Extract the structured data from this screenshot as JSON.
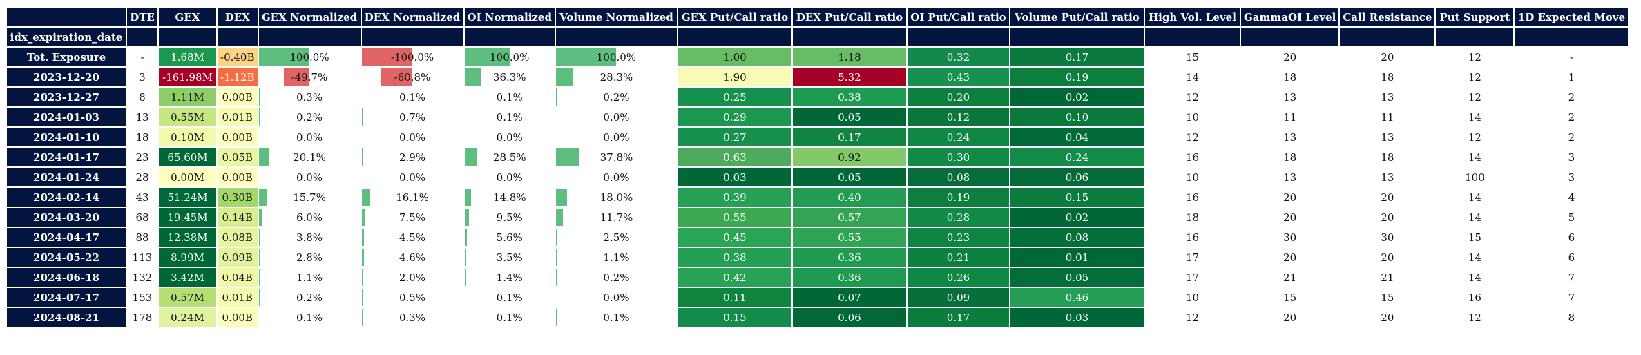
{
  "table": {
    "index_name": "idx_expiration_date",
    "columns": [
      "DTE",
      "GEX",
      "DEX",
      "GEX Normalized",
      "DEX Normalized",
      "OI Normalized",
      "Volume Normalized",
      "GEX Put/Call ratio",
      "DEX Put/Call ratio",
      "OI Put/Call ratio",
      "Volume Put/Call ratio",
      "High Vol. Level",
      "GammaOI Level",
      "Call Resistance",
      "Put Support",
      "1D Expected Move"
    ],
    "rows": [
      {
        "label": "Tot. Exposure",
        "cells": [
          "-",
          "1.68M",
          "-0.40B",
          "100.0%",
          "-100.0%",
          "100.0%",
          "100.0%",
          "1.00",
          "1.18",
          "0.32",
          "0.17",
          "15",
          "20",
          "20",
          "12",
          "-"
        ]
      },
      {
        "label": "2023-12-20",
        "cells": [
          "3",
          "-161.98M",
          "-1.12B",
          "-49.7%",
          "-60.8%",
          "36.3%",
          "28.3%",
          "1.90",
          "5.32",
          "0.43",
          "0.19",
          "14",
          "18",
          "18",
          "12",
          "1"
        ]
      },
      {
        "label": "2023-12-27",
        "cells": [
          "8",
          "1.11M",
          "0.00B",
          "0.3%",
          "0.1%",
          "0.1%",
          "0.2%",
          "0.25",
          "0.38",
          "0.20",
          "0.02",
          "12",
          "13",
          "13",
          "12",
          "2"
        ]
      },
      {
        "label": "2024-01-03",
        "cells": [
          "13",
          "0.55M",
          "0.01B",
          "0.2%",
          "0.7%",
          "0.1%",
          "0.0%",
          "0.29",
          "0.05",
          "0.12",
          "0.10",
          "10",
          "11",
          "11",
          "14",
          "2"
        ]
      },
      {
        "label": "2024-01-10",
        "cells": [
          "18",
          "0.10M",
          "0.00B",
          "0.0%",
          "0.0%",
          "0.0%",
          "0.0%",
          "0.27",
          "0.17",
          "0.24",
          "0.04",
          "12",
          "13",
          "13",
          "12",
          "2"
        ]
      },
      {
        "label": "2024-01-17",
        "cells": [
          "23",
          "65.60M",
          "0.05B",
          "20.1%",
          "2.9%",
          "28.5%",
          "37.8%",
          "0.63",
          "0.92",
          "0.30",
          "0.24",
          "16",
          "18",
          "18",
          "14",
          "3"
        ]
      },
      {
        "label": "2024-01-24",
        "cells": [
          "28",
          "0.00M",
          "0.00B",
          "0.0%",
          "0.0%",
          "0.0%",
          "0.0%",
          "0.03",
          "0.05",
          "0.08",
          "0.06",
          "10",
          "13",
          "13",
          "100",
          "3"
        ]
      },
      {
        "label": "2024-02-14",
        "cells": [
          "43",
          "51.24M",
          "0.30B",
          "15.7%",
          "16.1%",
          "14.8%",
          "18.0%",
          "0.39",
          "0.40",
          "0.19",
          "0.15",
          "16",
          "20",
          "20",
          "14",
          "4"
        ]
      },
      {
        "label": "2024-03-20",
        "cells": [
          "68",
          "19.45M",
          "0.14B",
          "6.0%",
          "7.5%",
          "9.5%",
          "11.7%",
          "0.55",
          "0.57",
          "0.28",
          "0.02",
          "18",
          "20",
          "20",
          "14",
          "5"
        ]
      },
      {
        "label": "2024-04-17",
        "cells": [
          "88",
          "12.38M",
          "0.08B",
          "3.8%",
          "4.5%",
          "5.6%",
          "2.5%",
          "0.45",
          "0.55",
          "0.23",
          "0.08",
          "16",
          "30",
          "30",
          "15",
          "6"
        ]
      },
      {
        "label": "2024-05-22",
        "cells": [
          "113",
          "8.99M",
          "0.09B",
          "2.8%",
          "4.6%",
          "3.5%",
          "1.1%",
          "0.38",
          "0.36",
          "0.21",
          "0.01",
          "17",
          "20",
          "20",
          "14",
          "6"
        ]
      },
      {
        "label": "2024-06-18",
        "cells": [
          "132",
          "3.42M",
          "0.04B",
          "1.1%",
          "2.0%",
          "1.4%",
          "0.2%",
          "0.42",
          "0.36",
          "0.26",
          "0.05",
          "17",
          "21",
          "21",
          "14",
          "7"
        ]
      },
      {
        "label": "2024-07-17",
        "cells": [
          "153",
          "0.57M",
          "0.01B",
          "0.2%",
          "0.5%",
          "0.1%",
          "0.0%",
          "0.11",
          "0.07",
          "0.09",
          "0.46",
          "10",
          "15",
          "15",
          "16",
          "7"
        ]
      },
      {
        "label": "2024-08-21",
        "cells": [
          "178",
          "0.24M",
          "0.00B",
          "0.1%",
          "0.3%",
          "0.1%",
          "0.1%",
          "0.15",
          "0.06",
          "0.17",
          "0.03",
          "12",
          "20",
          "20",
          "12",
          "8"
        ]
      }
    ],
    "styles": {
      "GEX": [
        [
          "#1a9850",
          "#ffffff"
        ],
        [
          "#a50026",
          "#ffffff"
        ],
        [
          "#8ccd67",
          "#111111"
        ],
        [
          "#c6e77f",
          "#111111"
        ],
        [
          "#f1f9ab",
          "#111111"
        ],
        [
          "#006837",
          "#ffffff"
        ],
        [
          "#feffbe",
          "#111111"
        ],
        [
          "#006837",
          "#ffffff"
        ],
        [
          "#006837",
          "#ffffff"
        ],
        [
          "#006837",
          "#ffffff"
        ],
        [
          "#006837",
          "#ffffff"
        ],
        [
          "#006837",
          "#ffffff"
        ],
        [
          "#b5df74",
          "#111111"
        ],
        [
          "#dff2a0",
          "#111111"
        ]
      ],
      "DEX": [
        [
          "#fdd385",
          "#111111"
        ],
        [
          "#f46d43",
          "#ffffff"
        ],
        [
          "#fffebe",
          "#111111"
        ],
        [
          "#f6fbb2",
          "#111111"
        ],
        [
          "#fffebe",
          "#111111"
        ],
        [
          "#e9f6a1",
          "#111111"
        ],
        [
          "#fffebe",
          "#111111"
        ],
        [
          "#a2d86a",
          "#111111"
        ],
        [
          "#d6ee8f",
          "#111111"
        ],
        [
          "#e6f4a0",
          "#111111"
        ],
        [
          "#e3f39d",
          "#111111"
        ],
        [
          "#eff8a7",
          "#111111"
        ],
        [
          "#f6fbb2",
          "#111111"
        ],
        [
          "#fbfdbb",
          "#111111"
        ]
      ],
      "GEX Put/Call ratio": [
        "#66bd63",
        "#f7fbb3",
        "#16914d",
        "#1a9850",
        "#16914d",
        "#4eab5b",
        "#006837",
        "#26a055",
        "#3ba852",
        "#2aa455",
        "#249f55",
        "#28a356",
        "#0e843f",
        "#138c4a"
      ],
      "DEX Put/Call ratio": [
        "#66bd63",
        "#a50026",
        "#1e9a51",
        "#006837",
        "#0f8541",
        "#84c969",
        "#006837",
        "#219c52",
        "#33a454",
        "#30a354",
        "#1e9a51",
        "#1e9a51",
        "#006837",
        "#006837"
      ],
      "OI Put/Call ratio": [
        "#13894b",
        "#17914f",
        "#0c7f3f",
        "#0a763c",
        "#108845",
        "#118a47",
        "#066c39",
        "#0c7f3f",
        "#118a47",
        "#0e8443",
        "#0c803f",
        "#108845",
        "#076e3a",
        "#0c7d3e"
      ],
      "Volume Put/Call ratio": [
        "#0a7a3e",
        "#0c7f3f",
        "#006837",
        "#097a3c",
        "#006b38",
        "#138c4a",
        "#046b38",
        "#0a7d3e",
        "#006837",
        "#03703a",
        "#006837",
        "#036e39",
        "#249f55",
        "#006837"
      ]
    },
    "bar_colors": {
      "positive": "#5ebe80",
      "negative": "#e16464"
    }
  }
}
